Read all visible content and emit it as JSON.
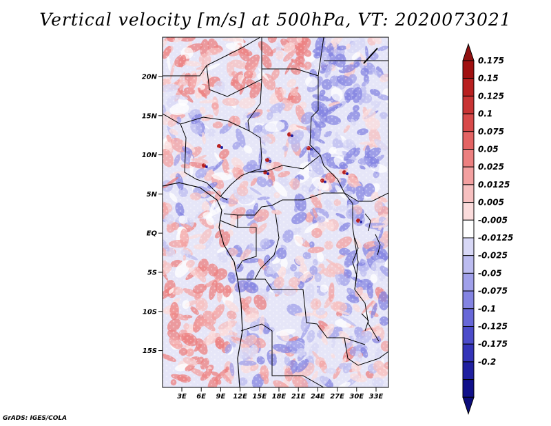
{
  "title": "Vertical velocity [m/s] at 500hPa, VT: 2020073021",
  "footer": "GrADS: IGES/COLA",
  "map": {
    "region": "Central Africa",
    "lat_ticks": [
      "20N",
      "15N",
      "10N",
      "5N",
      "EQ",
      "5S",
      "10S",
      "15S"
    ],
    "lon_ticks": [
      "3E",
      "6E",
      "9E",
      "12E",
      "15E",
      "18E",
      "21E",
      "24E",
      "27E",
      "30E",
      "33E"
    ]
  },
  "colorbar": {
    "labels": [
      "0.175",
      "0.15",
      "0.125",
      "0.1",
      "0.075",
      "0.05",
      "0.025",
      "0.0125",
      "0.005",
      "-0.005",
      "-0.0125",
      "-0.025",
      "-0.05",
      "-0.075",
      "-0.1",
      "-0.125",
      "-0.175",
      "-0.2"
    ],
    "colors": [
      "#a01010",
      "#b82020",
      "#c83434",
      "#d84a4a",
      "#e46464",
      "#ec8080",
      "#f3a0a0",
      "#f7c0c0",
      "#fbdcdc",
      "#ffffff",
      "#d8d8f6",
      "#bcbcf0",
      "#a0a0ea",
      "#8484e2",
      "#6868d8",
      "#4c4cca",
      "#3434b8",
      "#2020a0",
      "#10108a"
    ],
    "top_arrow_color": "#901010",
    "bottom_arrow_color": "#0c0c7a"
  }
}
